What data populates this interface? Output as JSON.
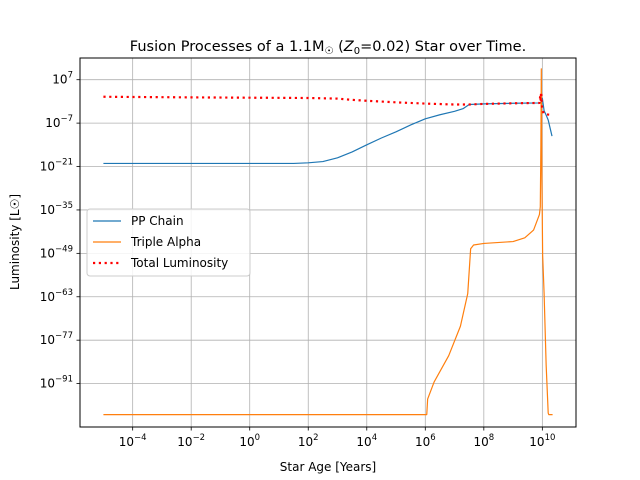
{
  "chart_data": {
    "type": "line",
    "title": "Fusion Processes of a 1.1M☉ (Z₀=0.02) Star over Time.",
    "title_parts": {
      "prefix": "Fusion Processes of a 1.1M",
      "sun_symbol": "☉",
      "middle": " (",
      "z_var": "Z",
      "z_sub": "0",
      "suffix": "=0.02) Star over Time."
    },
    "xlabel": "Star Age [Years]",
    "ylabel": "Luminosity [L☉]",
    "x_scale": "log",
    "y_scale": "log",
    "xlim_log10": [
      -5.8,
      11.15
    ],
    "ylim_log10": [
      -105,
      14
    ],
    "x_ticks": [
      {
        "log10": -4,
        "base": "10",
        "exp": "−4"
      },
      {
        "log10": -2,
        "base": "10",
        "exp": "−2"
      },
      {
        "log10": 0,
        "base": "10",
        "exp": "0"
      },
      {
        "log10": 2,
        "base": "10",
        "exp": "2"
      },
      {
        "log10": 4,
        "base": "10",
        "exp": "4"
      },
      {
        "log10": 6,
        "base": "10",
        "exp": "6"
      },
      {
        "log10": 8,
        "base": "10",
        "exp": "8"
      },
      {
        "log10": 10,
        "base": "10",
        "exp": "10"
      }
    ],
    "y_ticks": [
      {
        "log10": 7,
        "base": "10",
        "exp": "7"
      },
      {
        "log10": -7,
        "base": "10",
        "exp": "−7"
      },
      {
        "log10": -21,
        "base": "10",
        "exp": "−21"
      },
      {
        "log10": -35,
        "base": "10",
        "exp": "−35"
      },
      {
        "log10": -49,
        "base": "10",
        "exp": "−49"
      },
      {
        "log10": -63,
        "base": "10",
        "exp": "−63"
      },
      {
        "log10": -77,
        "base": "10",
        "exp": "−77"
      },
      {
        "log10": -91,
        "base": "10",
        "exp": "−91"
      }
    ],
    "grid": true,
    "legend_position": "center-left",
    "series": [
      {
        "name": "PP Chain",
        "color": "#1f77b4",
        "style": "solid",
        "points_log10": [
          [
            -5,
            -20
          ],
          [
            0,
            -20
          ],
          [
            1,
            -20
          ],
          [
            1.5,
            -20
          ],
          [
            2,
            -19.8
          ],
          [
            2.5,
            -19.4
          ],
          [
            3,
            -18.2
          ],
          [
            3.5,
            -16.3
          ],
          [
            4,
            -14
          ],
          [
            4.5,
            -11.8
          ],
          [
            5,
            -9.8
          ],
          [
            5.5,
            -7.6
          ],
          [
            6,
            -5.6
          ],
          [
            6.5,
            -4.3
          ],
          [
            7,
            -3.2
          ],
          [
            7.3,
            -2.3
          ],
          [
            7.5,
            -1
          ],
          [
            8,
            -0.8
          ],
          [
            9,
            -0.6
          ],
          [
            9.9,
            -0.5
          ],
          [
            9.95,
            -0.3
          ],
          [
            10,
            1
          ],
          [
            10.03,
            -1
          ],
          [
            10.06,
            -3
          ],
          [
            10.12,
            -4.2
          ],
          [
            10.2,
            -6
          ],
          [
            10.28,
            -9.2
          ],
          [
            10.33,
            -11.2
          ]
        ]
      },
      {
        "name": "Triple Alpha",
        "color": "#ff7f0e",
        "style": "solid",
        "points_log10": [
          [
            -5,
            -101
          ],
          [
            1,
            -101
          ],
          [
            6.05,
            -101
          ],
          [
            6.08,
            -96
          ],
          [
            6.3,
            -90.5
          ],
          [
            6.8,
            -82
          ],
          [
            7.2,
            -72.5
          ],
          [
            7.45,
            -62
          ],
          [
            7.55,
            -47.5
          ],
          [
            7.65,
            -46.3
          ],
          [
            8,
            -45.8
          ],
          [
            9,
            -45.2
          ],
          [
            9.4,
            -44
          ],
          [
            9.7,
            -41.5
          ],
          [
            9.9,
            -36.5
          ],
          [
            9.93,
            -34
          ],
          [
            9.95,
            -14
          ],
          [
            9.965,
            10.5
          ],
          [
            9.985,
            -25
          ],
          [
            10.01,
            -49.5
          ],
          [
            10.06,
            -62
          ],
          [
            10.13,
            -85
          ],
          [
            10.2,
            -100.5
          ],
          [
            10.22,
            -101
          ],
          [
            10.35,
            -101
          ]
        ]
      },
      {
        "name": "Total Luminosity",
        "color": "#ff0000",
        "style": "dotted",
        "points_log10": [
          [
            -5,
            1.5
          ],
          [
            -2,
            1.3
          ],
          [
            0,
            1.2
          ],
          [
            2,
            1.1
          ],
          [
            3,
            0.9
          ],
          [
            3.5,
            0.5
          ],
          [
            4,
            0.2
          ],
          [
            5,
            -0.3
          ],
          [
            6,
            -0.7
          ],
          [
            7,
            -1
          ],
          [
            7.5,
            -1
          ],
          [
            8,
            -0.8
          ],
          [
            9,
            -0.6
          ],
          [
            9.9,
            -0.5
          ],
          [
            9.93,
            2
          ],
          [
            9.94,
            0.5
          ],
          [
            9.96,
            3
          ],
          [
            9.98,
            -1
          ],
          [
            10,
            -3
          ],
          [
            10.05,
            -3.8
          ],
          [
            10.15,
            -4.2
          ],
          [
            10.25,
            -4.3
          ]
        ]
      }
    ]
  }
}
